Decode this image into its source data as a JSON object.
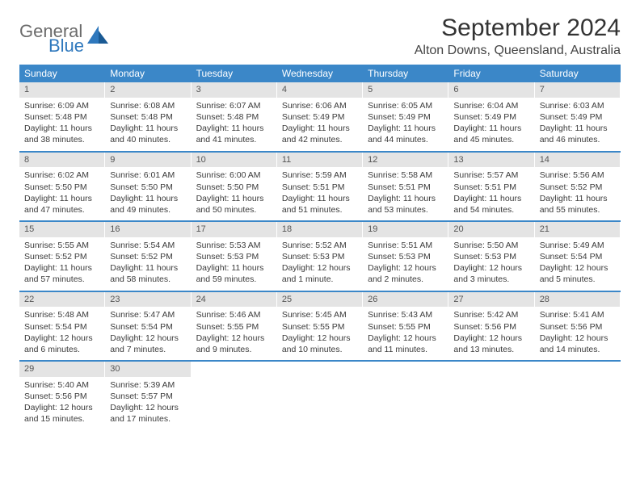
{
  "logo": {
    "general": "General",
    "blue": "Blue"
  },
  "title": "September 2024",
  "location": "Alton Downs, Queensland, Australia",
  "colors": {
    "header_bg": "#3b87c8",
    "header_text": "#ffffff",
    "daynum_bg": "#e4e4e4",
    "week_border": "#3b87c8",
    "title_color": "#333333",
    "location_color": "#444444",
    "logo_gray": "#6b6b6b",
    "logo_blue": "#2f78bd"
  },
  "weekdays": [
    "Sunday",
    "Monday",
    "Tuesday",
    "Wednesday",
    "Thursday",
    "Friday",
    "Saturday"
  ],
  "weeks": [
    [
      {
        "n": "1",
        "sr": "6:09 AM",
        "ss": "5:48 PM",
        "dl": "11 hours and 38 minutes."
      },
      {
        "n": "2",
        "sr": "6:08 AM",
        "ss": "5:48 PM",
        "dl": "11 hours and 40 minutes."
      },
      {
        "n": "3",
        "sr": "6:07 AM",
        "ss": "5:48 PM",
        "dl": "11 hours and 41 minutes."
      },
      {
        "n": "4",
        "sr": "6:06 AM",
        "ss": "5:49 PM",
        "dl": "11 hours and 42 minutes."
      },
      {
        "n": "5",
        "sr": "6:05 AM",
        "ss": "5:49 PM",
        "dl": "11 hours and 44 minutes."
      },
      {
        "n": "6",
        "sr": "6:04 AM",
        "ss": "5:49 PM",
        "dl": "11 hours and 45 minutes."
      },
      {
        "n": "7",
        "sr": "6:03 AM",
        "ss": "5:49 PM",
        "dl": "11 hours and 46 minutes."
      }
    ],
    [
      {
        "n": "8",
        "sr": "6:02 AM",
        "ss": "5:50 PM",
        "dl": "11 hours and 47 minutes."
      },
      {
        "n": "9",
        "sr": "6:01 AM",
        "ss": "5:50 PM",
        "dl": "11 hours and 49 minutes."
      },
      {
        "n": "10",
        "sr": "6:00 AM",
        "ss": "5:50 PM",
        "dl": "11 hours and 50 minutes."
      },
      {
        "n": "11",
        "sr": "5:59 AM",
        "ss": "5:51 PM",
        "dl": "11 hours and 51 minutes."
      },
      {
        "n": "12",
        "sr": "5:58 AM",
        "ss": "5:51 PM",
        "dl": "11 hours and 53 minutes."
      },
      {
        "n": "13",
        "sr": "5:57 AM",
        "ss": "5:51 PM",
        "dl": "11 hours and 54 minutes."
      },
      {
        "n": "14",
        "sr": "5:56 AM",
        "ss": "5:52 PM",
        "dl": "11 hours and 55 minutes."
      }
    ],
    [
      {
        "n": "15",
        "sr": "5:55 AM",
        "ss": "5:52 PM",
        "dl": "11 hours and 57 minutes."
      },
      {
        "n": "16",
        "sr": "5:54 AM",
        "ss": "5:52 PM",
        "dl": "11 hours and 58 minutes."
      },
      {
        "n": "17",
        "sr": "5:53 AM",
        "ss": "5:53 PM",
        "dl": "11 hours and 59 minutes."
      },
      {
        "n": "18",
        "sr": "5:52 AM",
        "ss": "5:53 PM",
        "dl": "12 hours and 1 minute."
      },
      {
        "n": "19",
        "sr": "5:51 AM",
        "ss": "5:53 PM",
        "dl": "12 hours and 2 minutes."
      },
      {
        "n": "20",
        "sr": "5:50 AM",
        "ss": "5:53 PM",
        "dl": "12 hours and 3 minutes."
      },
      {
        "n": "21",
        "sr": "5:49 AM",
        "ss": "5:54 PM",
        "dl": "12 hours and 5 minutes."
      }
    ],
    [
      {
        "n": "22",
        "sr": "5:48 AM",
        "ss": "5:54 PM",
        "dl": "12 hours and 6 minutes."
      },
      {
        "n": "23",
        "sr": "5:47 AM",
        "ss": "5:54 PM",
        "dl": "12 hours and 7 minutes."
      },
      {
        "n": "24",
        "sr": "5:46 AM",
        "ss": "5:55 PM",
        "dl": "12 hours and 9 minutes."
      },
      {
        "n": "25",
        "sr": "5:45 AM",
        "ss": "5:55 PM",
        "dl": "12 hours and 10 minutes."
      },
      {
        "n": "26",
        "sr": "5:43 AM",
        "ss": "5:55 PM",
        "dl": "12 hours and 11 minutes."
      },
      {
        "n": "27",
        "sr": "5:42 AM",
        "ss": "5:56 PM",
        "dl": "12 hours and 13 minutes."
      },
      {
        "n": "28",
        "sr": "5:41 AM",
        "ss": "5:56 PM",
        "dl": "12 hours and 14 minutes."
      }
    ],
    [
      {
        "n": "29",
        "sr": "5:40 AM",
        "ss": "5:56 PM",
        "dl": "12 hours and 15 minutes."
      },
      {
        "n": "30",
        "sr": "5:39 AM",
        "ss": "5:57 PM",
        "dl": "12 hours and 17 minutes."
      },
      null,
      null,
      null,
      null,
      null
    ]
  ],
  "labels": {
    "sunrise": "Sunrise:",
    "sunset": "Sunset:",
    "daylight": "Daylight:"
  }
}
